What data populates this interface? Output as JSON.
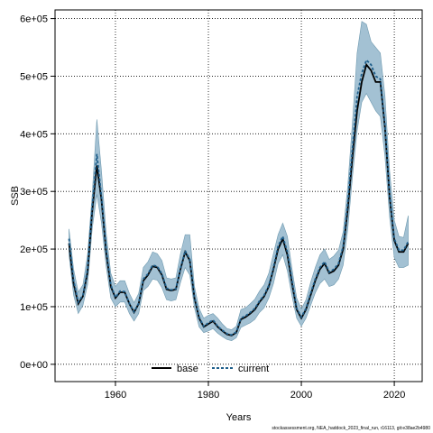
{
  "chart_data": {
    "type": "line",
    "xlabel": "Years",
    "ylabel": "SSB",
    "xlim": [
      1947,
      2026
    ],
    "ylim": [
      -30000,
      615000
    ],
    "x_ticks": [
      1960,
      1980,
      2000,
      2020
    ],
    "y_ticks": [
      0,
      100000,
      200000,
      300000,
      400000,
      500000,
      600000
    ],
    "y_tick_labels": [
      "0e+00",
      "1e+05",
      "2e+05",
      "3e+05",
      "4e+05",
      "5e+05",
      "6e+05"
    ],
    "x_tick_labels": [
      "1960",
      "1980",
      "2000",
      "2020"
    ],
    "grid": true,
    "legend_position": "bottom",
    "colors": {
      "band": "#a3c1d3",
      "band_edge": "#6f9ab0",
      "base": "#000000",
      "current": "#1f5f8b"
    },
    "years": [
      1950,
      1951,
      1952,
      1953,
      1954,
      1955,
      1956,
      1957,
      1958,
      1959,
      1960,
      1961,
      1962,
      1963,
      1964,
      1965,
      1966,
      1967,
      1968,
      1969,
      1970,
      1971,
      1972,
      1973,
      1974,
      1975,
      1976,
      1977,
      1978,
      1979,
      1980,
      1981,
      1982,
      1983,
      1984,
      1985,
      1986,
      1987,
      1988,
      1989,
      1990,
      1991,
      1992,
      1993,
      1994,
      1995,
      1996,
      1997,
      1998,
      1999,
      2000,
      2001,
      2002,
      2003,
      2004,
      2005,
      2006,
      2007,
      2008,
      2009,
      2010,
      2011,
      2012,
      2013,
      2014,
      2015,
      2016,
      2017,
      2018,
      2019,
      2020,
      2021,
      2022,
      2023
    ],
    "series": [
      {
        "name": "base",
        "values": [
          210000,
          140000,
          105000,
          118000,
          160000,
          265000,
          345000,
          285000,
          195000,
          135000,
          115000,
          125000,
          125000,
          105000,
          90000,
          105000,
          145000,
          155000,
          170000,
          168000,
          155000,
          130000,
          128000,
          130000,
          165000,
          195000,
          180000,
          115000,
          80000,
          65000,
          70000,
          75000,
          65000,
          58000,
          52000,
          50000,
          55000,
          78000,
          82000,
          88000,
          95000,
          108000,
          118000,
          135000,
          165000,
          200000,
          218000,
          190000,
          140000,
          95000,
          80000,
          95000,
          120000,
          145000,
          165000,
          175000,
          158000,
          162000,
          172000,
          200000,
          270000,
          360000,
          440000,
          490000,
          520000,
          510000,
          490000,
          490000,
          410000,
          290000,
          215000,
          195000,
          195000,
          210000
        ]
      },
      {
        "name": "current",
        "values": [
          218000,
          145000,
          108000,
          120000,
          165000,
          272000,
          365000,
          290000,
          200000,
          138000,
          116000,
          127000,
          126000,
          106000,
          91000,
          106000,
          148000,
          157000,
          172000,
          170000,
          157000,
          132000,
          129000,
          131000,
          167000,
          197000,
          182000,
          117000,
          82000,
          66000,
          72000,
          77000,
          66000,
          59000,
          53000,
          51000,
          56000,
          80000,
          84000,
          90000,
          97000,
          110000,
          120000,
          137000,
          168000,
          205000,
          222000,
          195000,
          145000,
          97000,
          82000,
          97000,
          123000,
          148000,
          168000,
          178000,
          160000,
          165000,
          175000,
          205000,
          280000,
          375000,
          465000,
          505000,
          528000,
          520000,
          500000,
          495000,
          415000,
          295000,
          218000,
          198000,
          198000,
          213000
        ]
      }
    ],
    "uncertainty_band": {
      "lower": [
        190000,
        120000,
        88000,
        102000,
        138000,
        235000,
        295000,
        245000,
        170000,
        115000,
        100000,
        108000,
        108000,
        88000,
        75000,
        88000,
        128000,
        135000,
        148000,
        146000,
        133000,
        112000,
        110000,
        112000,
        142000,
        168000,
        155000,
        98000,
        65000,
        55000,
        58000,
        62000,
        54000,
        48000,
        43000,
        41000,
        46000,
        64000,
        68000,
        72000,
        78000,
        90000,
        98000,
        115000,
        140000,
        175000,
        190000,
        162000,
        118000,
        80000,
        66000,
        80000,
        102000,
        124000,
        140000,
        148000,
        135000,
        138000,
        148000,
        172000,
        235000,
        325000,
        405000,
        455000,
        470000,
        455000,
        440000,
        430000,
        360000,
        255000,
        185000,
        168000,
        168000,
        172000
      ],
      "upper": [
        235000,
        165000,
        125000,
        138000,
        190000,
        295000,
        425000,
        335000,
        228000,
        158000,
        135000,
        145000,
        145000,
        123000,
        107000,
        123000,
        168000,
        178000,
        195000,
        192000,
        180000,
        150000,
        148000,
        150000,
        192000,
        225000,
        225000,
        135000,
        97000,
        80000,
        85000,
        88000,
        80000,
        70000,
        62000,
        60000,
        66000,
        95000,
        98000,
        105000,
        113000,
        127000,
        138000,
        158000,
        192000,
        225000,
        245000,
        222000,
        165000,
        115000,
        96000,
        112000,
        142000,
        168000,
        190000,
        200000,
        182000,
        188000,
        198000,
        230000,
        310000,
        420000,
        540000,
        595000,
        590000,
        560000,
        550000,
        540000,
        465000,
        335000,
        250000,
        222000,
        220000,
        258000
      ]
    }
  },
  "caption": "stockassessment.org, NEA_haddock_2023_final_run, r16113, git:e38ae2b4980"
}
